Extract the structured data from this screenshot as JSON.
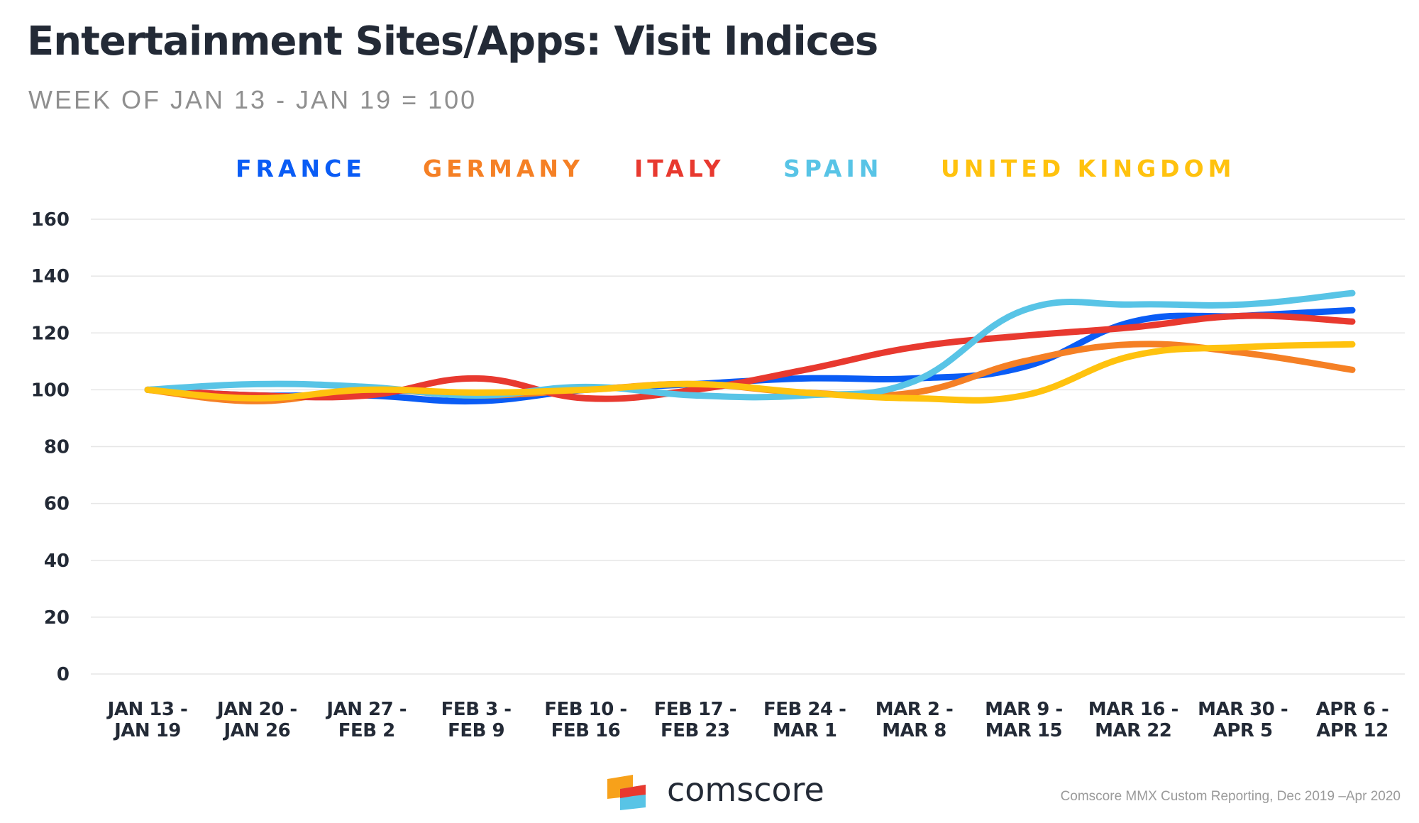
{
  "header": {
    "title": "Entertainment Sites/Apps: Visit Indices",
    "subtitle": "WEEK OF JAN 13 - JAN 19 = 100"
  },
  "colors": {
    "France": "#0a5cf5",
    "Germany": "#f58025",
    "Italy": "#e8392f",
    "Spain": "#58c4e6",
    "United Kingdom": "#ffc20e",
    "grid": "#e6e6e6",
    "text": "#232a36"
  },
  "chart_data": {
    "type": "line",
    "title": "Entertainment Sites/Apps: Visit Indices",
    "subtitle": "WEEK OF JAN 13 - JAN 19 = 100",
    "categories": [
      [
        "JAN 13 -",
        "JAN 19"
      ],
      [
        "JAN 20 -",
        "JAN 26"
      ],
      [
        "JAN 27 -",
        "FEB 2"
      ],
      [
        "FEB 3 -",
        "FEB 9"
      ],
      [
        "FEB 10 -",
        "FEB 16"
      ],
      [
        "FEB 17 -",
        "FEB 23"
      ],
      [
        "FEB 24 -",
        "MAR 1"
      ],
      [
        "MAR 2 -",
        "MAR 8"
      ],
      [
        "MAR 9 -",
        "MAR 15"
      ],
      [
        "MAR 16 -",
        "MAR 22"
      ],
      [
        "MAR 30 -",
        "APR 5"
      ],
      [
        "APR 6 -",
        "APR 12"
      ]
    ],
    "ylim": [
      0,
      160
    ],
    "yticks": [
      0,
      20,
      40,
      60,
      80,
      100,
      120,
      140,
      160
    ],
    "grid": true,
    "legend_position": "top",
    "series": [
      {
        "name": "FRANCE",
        "key": "France",
        "values": [
          100,
          98,
          98,
          96,
          100,
          102,
          104,
          104,
          108,
          124,
          126,
          128
        ]
      },
      {
        "name": "GERMANY",
        "key": "Germany",
        "values": [
          100,
          96,
          100,
          98,
          100,
          102,
          99,
          99,
          110,
          116,
          113,
          107
        ]
      },
      {
        "name": "ITALY",
        "key": "Italy",
        "values": [
          100,
          98,
          98,
          104,
          97,
          100,
          107,
          115,
          119,
          122,
          126,
          124
        ]
      },
      {
        "name": "SPAIN",
        "key": "Spain",
        "values": [
          100,
          102,
          101,
          98,
          101,
          98,
          98,
          103,
          128,
          130,
          130,
          134
        ]
      },
      {
        "name": "UNITED KINGDOM",
        "key": "United Kingdom",
        "values": [
          100,
          97,
          100,
          99,
          100,
          102,
          99,
          97,
          98,
          112,
          115,
          116
        ]
      }
    ]
  },
  "footer": {
    "logo_text": "comscore",
    "source": "Comscore MMX Custom Reporting, Dec 2019 –Apr 2020"
  }
}
